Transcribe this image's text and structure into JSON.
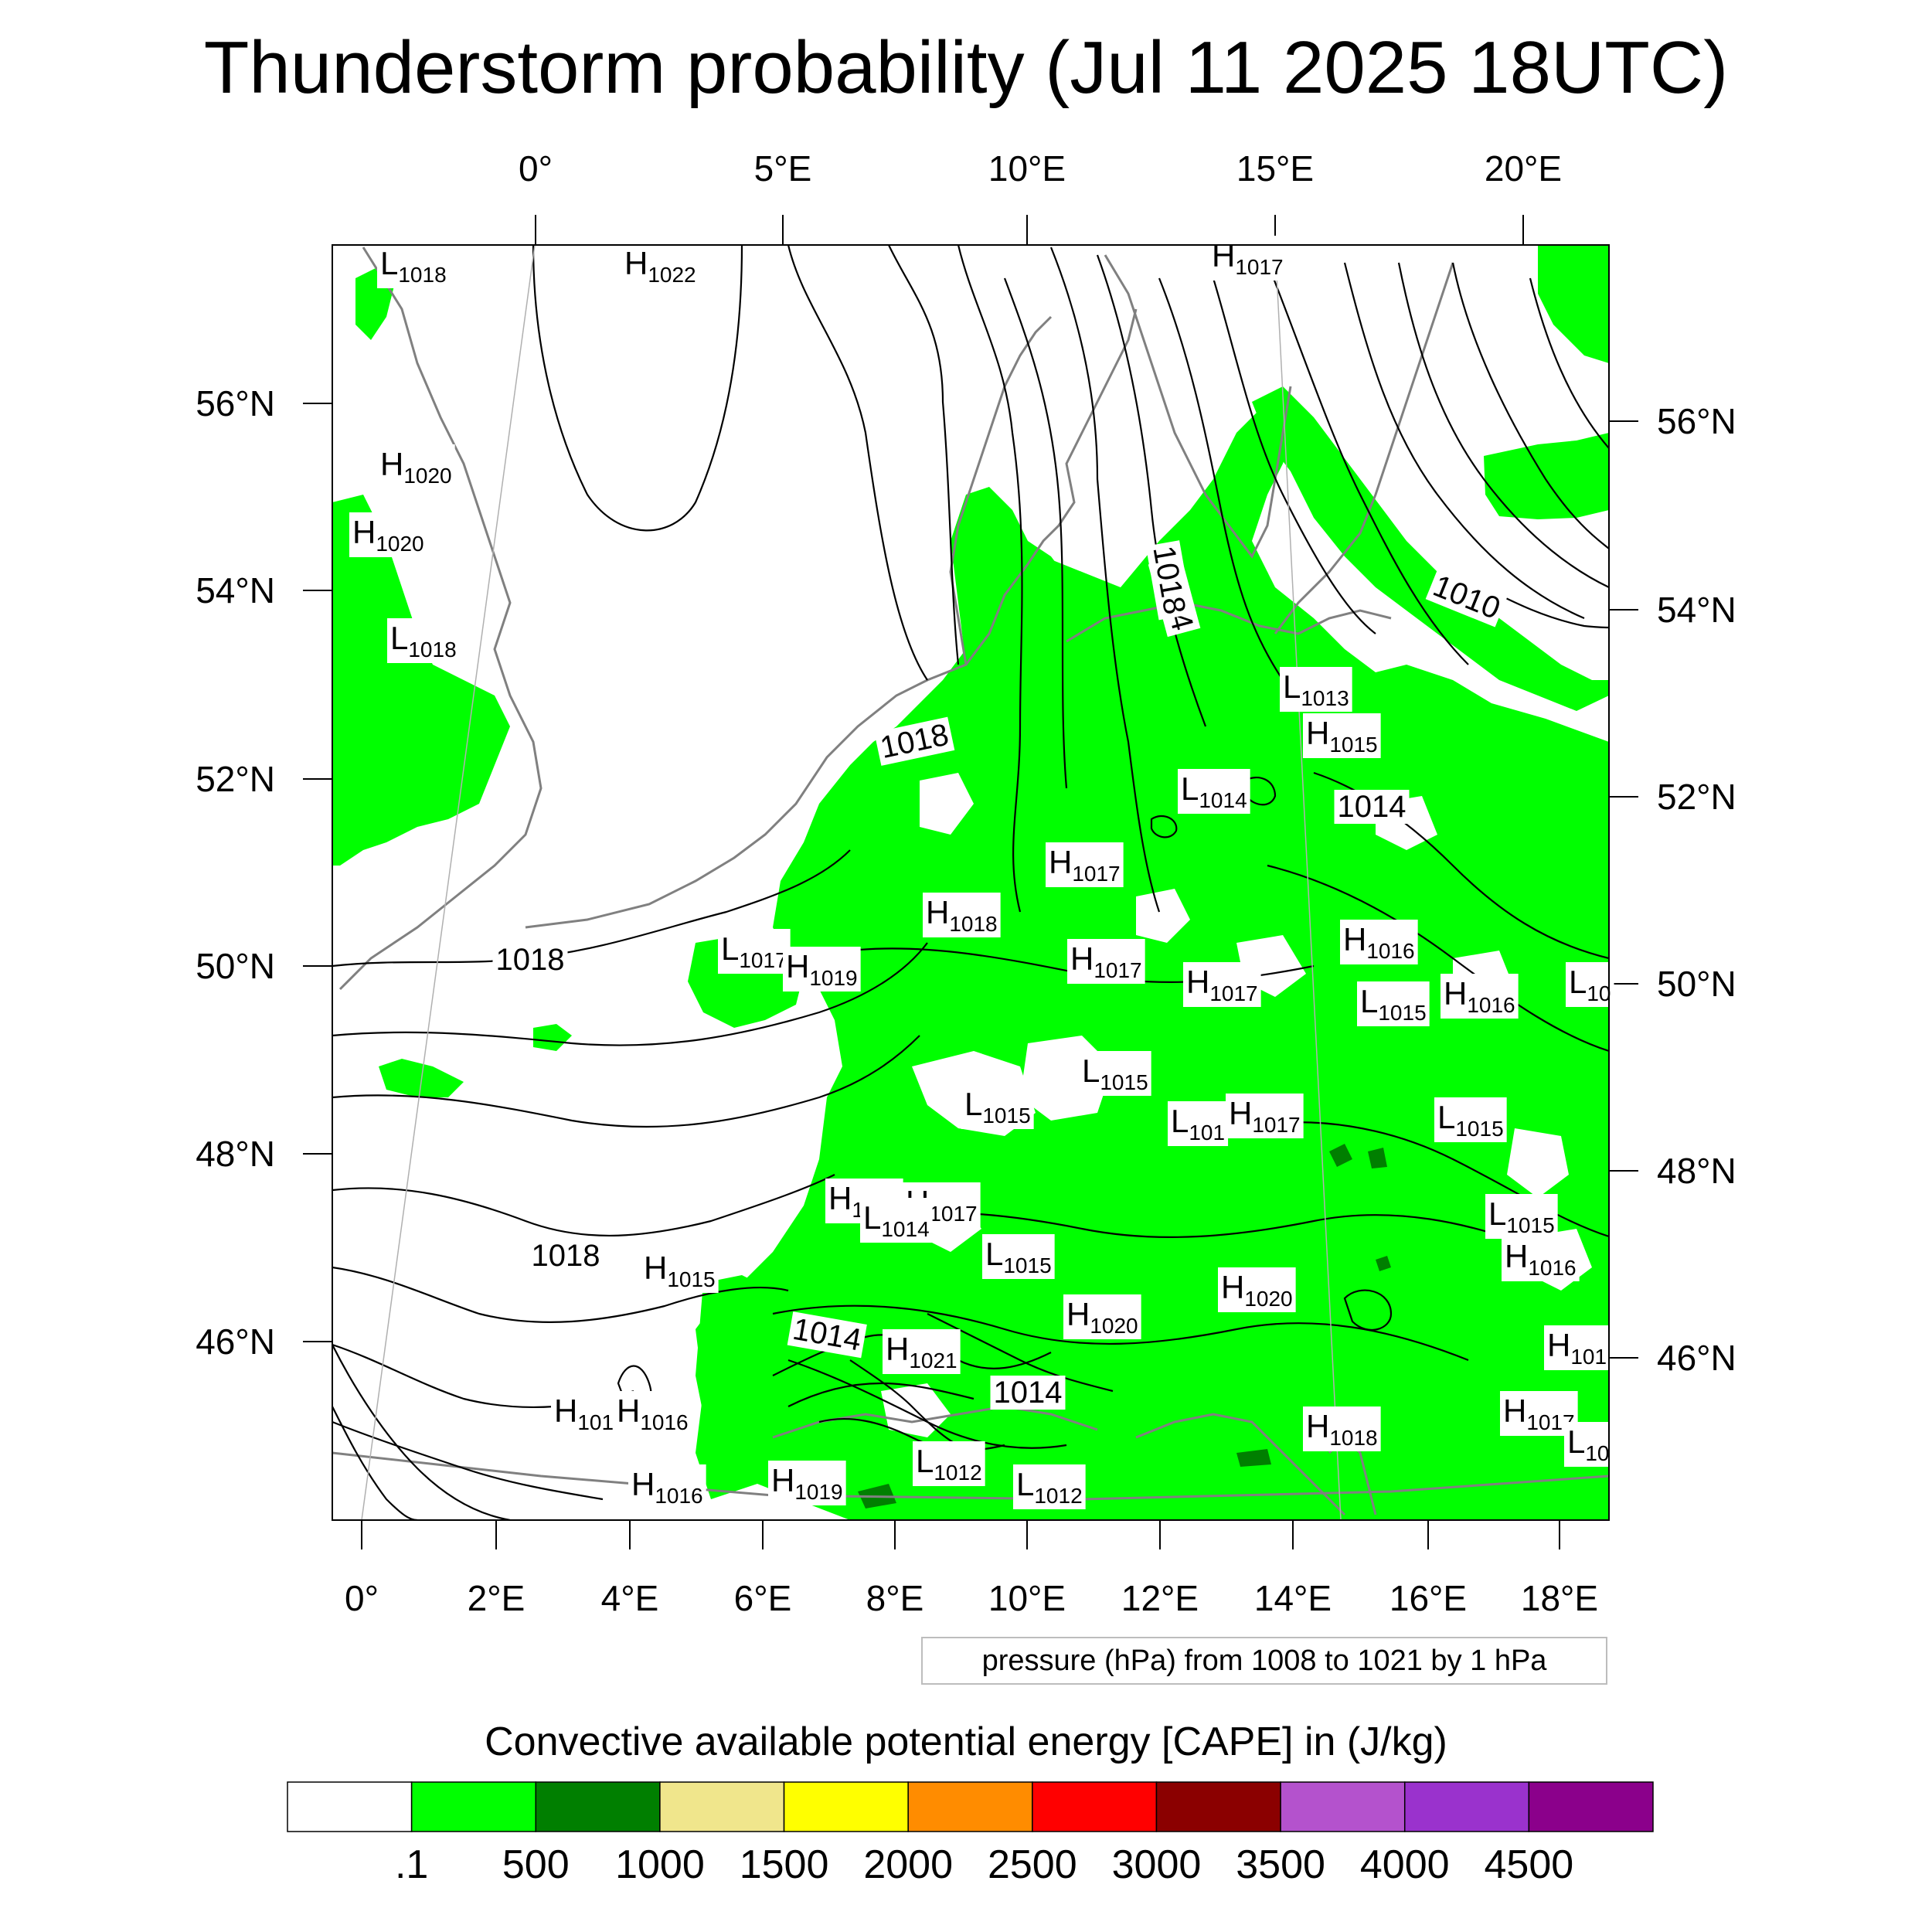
{
  "title": "Thunderstorm probability (Jul 11 2025 18UTC)",
  "top_lon_labels": [
    "0°",
    "5°E",
    "10°E",
    "15°E",
    "20°E"
  ],
  "bottom_lon_labels": [
    "0°",
    "2°E",
    "4°E",
    "6°E",
    "8°E",
    "10°E",
    "12°E",
    "14°E",
    "16°E",
    "18°E"
  ],
  "left_lat_labels": [
    "56°N",
    "54°N",
    "52°N",
    "50°N",
    "48°N",
    "46°N"
  ],
  "right_lat_labels": [
    "56°N",
    "54°N",
    "52°N",
    "50°N",
    "48°N",
    "46°N"
  ],
  "pressure_legend": "pressure (hPa) from 1008 to 1021 by 1 hPa",
  "colorbar": {
    "title": "Convective available potential energy [CAPE] in (J/kg)",
    "colors": [
      "#ffffff",
      "#00ff00",
      "#007f00",
      "#f0e68c",
      "#ffff00",
      "#ff8c00",
      "#ff0000",
      "#8b0000",
      "#b452cd",
      "#9a32cd",
      "#8b008b"
    ],
    "labels": [
      ".1",
      "500",
      "1000",
      "1500",
      "2000",
      "2500",
      "3000",
      "3500",
      "4000",
      "4500"
    ]
  },
  "map": {
    "cape_color": "#00ff00",
    "cape_dark_color": "#007f00",
    "coastline_color": "#808080",
    "isobar_color": "#000000"
  },
  "pressure_labels": [
    {
      "type": "L",
      "value": "1018"
    },
    {
      "type": "H",
      "value": "1022"
    },
    {
      "type": "H",
      "value": "1017"
    },
    {
      "type": "H",
      "value": "1020"
    },
    {
      "type": "H",
      "value": "1020"
    },
    {
      "type": "L",
      "value": "1018"
    },
    {
      "type": "L",
      "value": "1013"
    },
    {
      "type": "H",
      "value": "1015"
    },
    {
      "type": "L",
      "value": "1014"
    },
    {
      "type": "H",
      "value": "1017"
    },
    {
      "type": "H",
      "value": "1018"
    },
    {
      "type": "L",
      "value": "1017"
    },
    {
      "type": "H",
      "value": "1019"
    },
    {
      "type": "H",
      "value": "1017"
    },
    {
      "type": "H",
      "value": "1017"
    },
    {
      "type": "H",
      "value": "1016"
    },
    {
      "type": "L",
      "value": "1015"
    },
    {
      "type": "H",
      "value": "1016"
    },
    {
      "type": "L",
      "value": "10"
    },
    {
      "type": "L",
      "value": "1015"
    },
    {
      "type": "L",
      "value": "1015"
    },
    {
      "type": "L",
      "value": "101"
    },
    {
      "type": "H",
      "value": "1017"
    },
    {
      "type": "L",
      "value": "1015"
    },
    {
      "type": "H",
      "value": "1017"
    },
    {
      "type": "H",
      "value": "1017"
    },
    {
      "type": "L",
      "value": "1014"
    },
    {
      "type": "L",
      "value": "1015"
    },
    {
      "type": "L",
      "value": "1015"
    },
    {
      "type": "H",
      "value": "1016"
    },
    {
      "type": "H",
      "value": "1015"
    },
    {
      "type": "H",
      "value": "1020"
    },
    {
      "type": "H",
      "value": "1020"
    },
    {
      "type": "H",
      "value": "1021"
    },
    {
      "type": "H",
      "value": "101"
    },
    {
      "type": "H",
      "value": "1016"
    },
    {
      "type": "H",
      "value": "1016"
    },
    {
      "type": "H",
      "value": "1019"
    },
    {
      "type": "L",
      "value": "1012"
    },
    {
      "type": "L",
      "value": "1012"
    },
    {
      "type": "H",
      "value": "1018"
    },
    {
      "type": "H",
      "value": "1017"
    },
    {
      "type": "H",
      "value": "101"
    },
    {
      "type": "L",
      "value": "10"
    }
  ],
  "isobar_labels": [
    "1018",
    "1014",
    "1010",
    "1018",
    "1014",
    "1018",
    "1014",
    "1014",
    "1018"
  ]
}
